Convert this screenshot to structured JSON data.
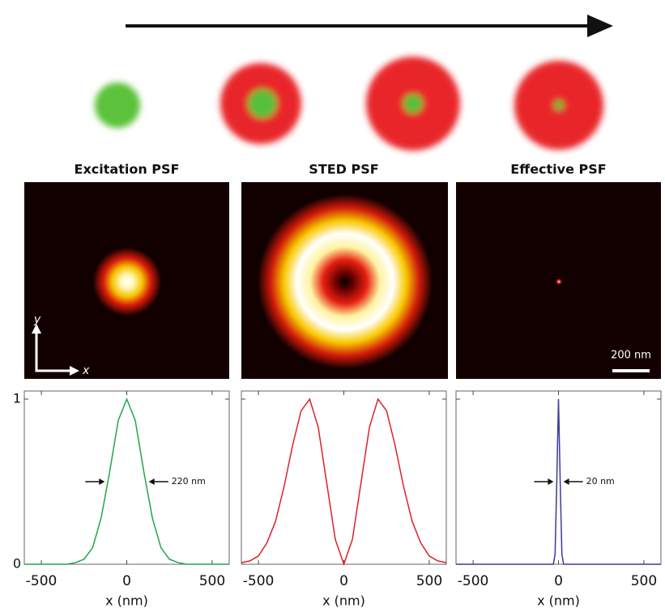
{
  "chart_data": [
    {
      "type": "line",
      "title": "Excitation PSF",
      "xlabel": "x (nm)",
      "annotation": "220 nm",
      "x": [
        -600,
        -550,
        -500,
        -450,
        -400,
        -350,
        -300,
        -250,
        -200,
        -150,
        -100,
        -50,
        0,
        50,
        100,
        150,
        200,
        250,
        300,
        350,
        400,
        450,
        500,
        550,
        600
      ],
      "series": [
        {
          "color": "#1fa64a",
          "values": [
            0,
            0,
            0,
            0,
            0,
            0,
            0.01,
            0.03,
            0.1,
            0.28,
            0.56,
            0.87,
            1,
            0.87,
            0.56,
            0.28,
            0.1,
            0.03,
            0.01,
            0,
            0,
            0,
            0,
            0,
            0
          ]
        }
      ],
      "xlim": [
        -600,
        600
      ],
      "ylim": [
        0,
        1
      ],
      "xticks": [
        -500,
        0,
        500
      ],
      "yticks": [
        0,
        1
      ]
    },
    {
      "type": "line",
      "title": "STED PSF",
      "xlabel": "x (nm)",
      "x": [
        -600,
        -550,
        -500,
        -450,
        -400,
        -350,
        -300,
        -250,
        -200,
        -150,
        -100,
        -50,
        0,
        50,
        100,
        150,
        200,
        250,
        300,
        350,
        400,
        450,
        500,
        550,
        600
      ],
      "series": [
        {
          "color": "#e0202a",
          "values": [
            0.01,
            0.02,
            0.05,
            0.13,
            0.26,
            0.47,
            0.72,
            0.93,
            1,
            0.83,
            0.49,
            0.15,
            0,
            0.15,
            0.49,
            0.83,
            1,
            0.93,
            0.72,
            0.47,
            0.26,
            0.13,
            0.05,
            0.02,
            0.01
          ]
        }
      ],
      "xlim": [
        -600,
        600
      ],
      "ylim": [
        0,
        1
      ],
      "xticks": [
        -500,
        0,
        500
      ],
      "yticks": [
        0,
        1
      ]
    },
    {
      "type": "line",
      "title": "Effective PSF",
      "xlabel": "x (nm)",
      "annotation": "20 nm",
      "x": [
        -600,
        -30,
        -20,
        -10,
        0,
        10,
        20,
        30,
        600
      ],
      "series": [
        {
          "color": "#3a3aa0",
          "values": [
            0,
            0,
            0.06,
            0.5,
            1,
            0.5,
            0.06,
            0,
            0
          ]
        }
      ],
      "xlim": [
        -600,
        600
      ],
      "ylim": [
        0,
        1
      ],
      "xticks": [
        -500,
        0,
        500
      ],
      "yticks": [
        0,
        1
      ]
    }
  ],
  "images": {
    "y_axis": "y",
    "x_axis": "x",
    "scale_bar": "200 nm"
  }
}
